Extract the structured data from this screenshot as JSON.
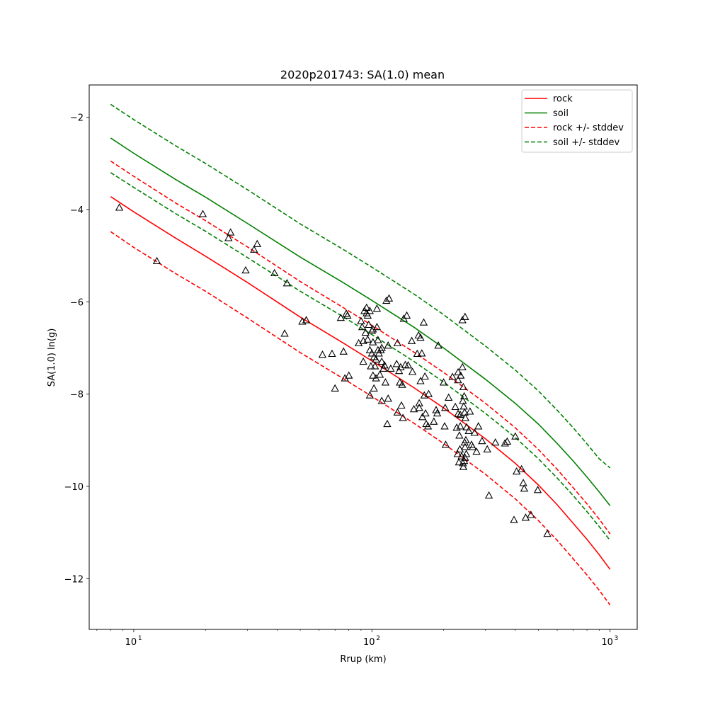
{
  "chart_data": {
    "type": "scatter",
    "title": "2020p201743: SA(1.0) mean",
    "xlabel": "Rrup (km)",
    "ylabel": "SA(1.0) ln(g)",
    "xscale": "log",
    "xlim": [
      6.5,
      1300
    ],
    "ylim": [
      -13.1,
      -1.3
    ],
    "grid": false,
    "legend_position": "top-right",
    "x_ticks": [
      {
        "value": 10,
        "label": "10",
        "exp": "1"
      },
      {
        "value": 100,
        "label": "10",
        "exp": "2"
      },
      {
        "value": 1000,
        "label": "10",
        "exp": "3"
      }
    ],
    "y_ticks": [
      {
        "value": -2,
        "label": "−2"
      },
      {
        "value": -4,
        "label": "−4"
      },
      {
        "value": -6,
        "label": "−6"
      },
      {
        "value": -8,
        "label": "−8"
      },
      {
        "value": -10,
        "label": "−10"
      },
      {
        "value": -12,
        "label": "−12"
      }
    ],
    "series": [
      {
        "name": "rock",
        "kind": "line",
        "dash": false,
        "color": "#ff0000",
        "x": [
          8,
          10,
          15,
          20,
          30,
          50,
          75,
          100,
          150,
          200,
          300,
          400,
          500,
          600,
          700,
          800,
          900,
          1000
        ],
        "y": [
          -3.72,
          -4.05,
          -4.62,
          -5.01,
          -5.58,
          -6.33,
          -6.88,
          -7.28,
          -7.86,
          -8.3,
          -8.97,
          -9.5,
          -9.97,
          -10.4,
          -10.8,
          -11.15,
          -11.48,
          -11.8
        ]
      },
      {
        "name": "soil",
        "kind": "line",
        "dash": false,
        "color": "#008000",
        "x": [
          8,
          10,
          15,
          20,
          30,
          50,
          75,
          100,
          150,
          200,
          300,
          400,
          500,
          600,
          700,
          800,
          900,
          1000
        ],
        "y": [
          -2.45,
          -2.78,
          -3.35,
          -3.73,
          -4.3,
          -5.03,
          -5.57,
          -5.97,
          -6.55,
          -7.0,
          -7.68,
          -8.2,
          -8.65,
          -9.07,
          -9.45,
          -9.8,
          -10.12,
          -10.42
        ]
      },
      {
        "name": "rock +/- stddev",
        "kind": "line",
        "dash": true,
        "color": "#ff0000",
        "x": [
          8,
          10,
          15,
          20,
          30,
          50,
          75,
          100,
          150,
          200,
          300,
          400,
          500,
          600,
          700,
          800,
          900,
          1000
        ],
        "y": [
          -2.95,
          -3.28,
          -3.86,
          -4.24,
          -4.81,
          -5.56,
          -6.11,
          -6.51,
          -7.09,
          -7.53,
          -8.2,
          -8.73,
          -9.2,
          -9.63,
          -10.03,
          -10.38,
          -10.71,
          -11.03
        ]
      },
      {
        "name": "",
        "kind": "line",
        "dash": true,
        "color": "#ff0000",
        "x": [
          8,
          10,
          15,
          20,
          30,
          50,
          75,
          100,
          150,
          200,
          300,
          400,
          500,
          600,
          700,
          800,
          900,
          1000
        ],
        "y": [
          -4.48,
          -4.82,
          -5.39,
          -5.77,
          -6.35,
          -7.1,
          -7.65,
          -8.05,
          -8.63,
          -9.07,
          -9.74,
          -10.27,
          -10.74,
          -11.17,
          -11.57,
          -11.92,
          -12.25,
          -12.57
        ]
      },
      {
        "name": "soil +/- stddev",
        "kind": "line",
        "dash": true,
        "color": "#008000",
        "x": [
          8,
          10,
          15,
          20,
          30,
          50,
          75,
          100,
          150,
          200,
          300,
          400,
          500,
          600,
          700,
          800,
          900,
          1000
        ],
        "y": [
          -1.72,
          -2.05,
          -2.62,
          -3.0,
          -3.57,
          -4.31,
          -4.85,
          -5.25,
          -5.83,
          -6.28,
          -6.96,
          -7.48,
          -7.93,
          -8.35,
          -8.73,
          -9.08,
          -9.4,
          -9.6
        ]
      },
      {
        "name": "",
        "kind": "line",
        "dash": true,
        "color": "#008000",
        "x": [
          8,
          10,
          15,
          20,
          30,
          50,
          75,
          100,
          150,
          200,
          300,
          400,
          500,
          600,
          700,
          800,
          900,
          1000
        ],
        "y": [
          -3.2,
          -3.52,
          -4.09,
          -4.47,
          -5.04,
          -5.77,
          -6.31,
          -6.71,
          -7.29,
          -7.74,
          -8.42,
          -8.94,
          -9.4,
          -9.82,
          -10.2,
          -10.55,
          -10.87,
          -11.17
        ]
      },
      {
        "name": "",
        "kind": "scatter",
        "color": "#000000",
        "points": [
          [
            8.7,
            -3.96
          ],
          [
            12.5,
            -5.12
          ],
          [
            19.5,
            -4.1
          ],
          [
            25,
            -4.62
          ],
          [
            25.5,
            -4.5
          ],
          [
            29.5,
            -5.32
          ],
          [
            32,
            -4.87
          ],
          [
            33,
            -4.75
          ],
          [
            39,
            -5.38
          ],
          [
            43,
            -6.69
          ],
          [
            44,
            -5.6
          ],
          [
            51,
            -6.43
          ],
          [
            53,
            -6.4
          ],
          [
            62,
            -7.15
          ],
          [
            68,
            -7.13
          ],
          [
            70,
            -7.88
          ],
          [
            74,
            -6.35
          ],
          [
            76,
            -7.08
          ],
          [
            77,
            -7.66
          ],
          [
            78,
            -6.26
          ],
          [
            79,
            -6.3
          ],
          [
            80,
            -7.6
          ],
          [
            88,
            -6.9
          ],
          [
            90,
            -6.42
          ],
          [
            91,
            -6.55
          ],
          [
            92,
            -6.85
          ],
          [
            92,
            -7.3
          ],
          [
            93,
            -6.2
          ],
          [
            94,
            -6.67
          ],
          [
            95,
            -6.13
          ],
          [
            95,
            -6.25
          ],
          [
            96,
            -6.82
          ],
          [
            96,
            -6.3
          ],
          [
            97,
            -6.5
          ],
          [
            98,
            -7.05
          ],
          [
            98,
            -6.2
          ],
          [
            98,
            -8.03
          ],
          [
            99,
            -7.4
          ],
          [
            100,
            -6.63
          ],
          [
            100,
            -7.12
          ],
          [
            101,
            -6.6
          ],
          [
            101,
            -6.88
          ],
          [
            101,
            -7.6
          ],
          [
            102,
            -7.88
          ],
          [
            102,
            -7.2
          ],
          [
            103,
            -7.4
          ],
          [
            104,
            -7.25
          ],
          [
            104,
            -7.66
          ],
          [
            105,
            -6.15
          ],
          [
            105,
            -6.55
          ],
          [
            106,
            -6.83
          ],
          [
            106,
            -7.05
          ],
          [
            107,
            -7.12
          ],
          [
            108,
            -7.58
          ],
          [
            109,
            -7.05
          ],
          [
            110,
            -7.0
          ],
          [
            110,
            -7.3
          ],
          [
            110,
            -8.15
          ],
          [
            112,
            -7.45
          ],
          [
            113,
            -7.38
          ],
          [
            114,
            -7.75
          ],
          [
            115,
            -5.98
          ],
          [
            116,
            -8.65
          ],
          [
            117,
            -8.1
          ],
          [
            117,
            -6.95
          ],
          [
            118,
            -5.93
          ],
          [
            120,
            -7.45
          ],
          [
            127,
            -7.35
          ],
          [
            128,
            -6.9
          ],
          [
            128,
            -8.4
          ],
          [
            130,
            -7.5
          ],
          [
            131,
            -7.75
          ],
          [
            132,
            -7.42
          ],
          [
            133,
            -8.25
          ],
          [
            134,
            -7.8
          ],
          [
            135,
            -8.52
          ],
          [
            136,
            -6.37
          ],
          [
            138,
            -7.37
          ],
          [
            140,
            -6.3
          ],
          [
            142,
            -7.38
          ],
          [
            147,
            -6.85
          ],
          [
            148,
            -7.52
          ],
          [
            150,
            -8.33
          ],
          [
            155,
            -7.13
          ],
          [
            157,
            -6.73
          ],
          [
            158,
            -8.2
          ],
          [
            158,
            -8.3
          ],
          [
            160,
            -6.78
          ],
          [
            160,
            -7.72
          ],
          [
            162,
            -7.12
          ],
          [
            163,
            -8.5
          ],
          [
            165,
            -6.45
          ],
          [
            166,
            -8.03
          ],
          [
            167,
            -7.62
          ],
          [
            168,
            -8.42
          ],
          [
            169,
            -8.65
          ],
          [
            172,
            -8.7
          ],
          [
            173,
            -8.0
          ],
          [
            182,
            -8.6
          ],
          [
            186,
            -8.35
          ],
          [
            188,
            -8.42
          ],
          [
            190,
            -6.95
          ],
          [
            200,
            -7.75
          ],
          [
            202,
            -8.7
          ],
          [
            203,
            -8.3
          ],
          [
            204,
            -9.1
          ],
          [
            210,
            -8.08
          ],
          [
            218,
            -7.63
          ],
          [
            224,
            -8.28
          ],
          [
            227,
            -8.73
          ],
          [
            229,
            -9.3
          ],
          [
            230,
            -8.43
          ],
          [
            230,
            -7.53
          ],
          [
            230,
            -7.7
          ],
          [
            232,
            -9.48
          ],
          [
            233,
            -8.9
          ],
          [
            234,
            -9.2
          ],
          [
            235,
            -8.7
          ],
          [
            235,
            -8.45
          ],
          [
            236,
            -7.6
          ],
          [
            238,
            -9.35
          ],
          [
            240,
            -7.42
          ],
          [
            240,
            -6.4
          ],
          [
            241,
            -9.5
          ],
          [
            241,
            -8.15
          ],
          [
            242,
            -7.85
          ],
          [
            242,
            -9.58
          ],
          [
            243,
            -8.27
          ],
          [
            244,
            -8.05
          ],
          [
            244,
            -9.45
          ],
          [
            245,
            -8.4
          ],
          [
            245,
            -9.05
          ],
          [
            246,
            -6.33
          ],
          [
            246,
            -9.15
          ],
          [
            246,
            -9.38
          ],
          [
            247,
            -8.52
          ],
          [
            248,
            -9.0
          ],
          [
            249,
            -9.3
          ],
          [
            250,
            -8.72
          ],
          [
            255,
            -8.8
          ],
          [
            258,
            -8.38
          ],
          [
            262,
            -9.1
          ],
          [
            265,
            -9.15
          ],
          [
            270,
            -8.84
          ],
          [
            275,
            -9.25
          ],
          [
            280,
            -8.7
          ],
          [
            290,
            -9.02
          ],
          [
            305,
            -9.2
          ],
          [
            310,
            -10.2
          ],
          [
            330,
            -9.05
          ],
          [
            362,
            -9.07
          ],
          [
            370,
            -9.03
          ],
          [
            395,
            -10.73
          ],
          [
            400,
            -8.92
          ],
          [
            405,
            -9.68
          ],
          [
            425,
            -9.63
          ],
          [
            432,
            -9.93
          ],
          [
            436,
            -10.05
          ],
          [
            442,
            -10.68
          ],
          [
            465,
            -10.62
          ],
          [
            497,
            -10.08
          ],
          [
            545,
            -11.03
          ]
        ]
      }
    ]
  }
}
